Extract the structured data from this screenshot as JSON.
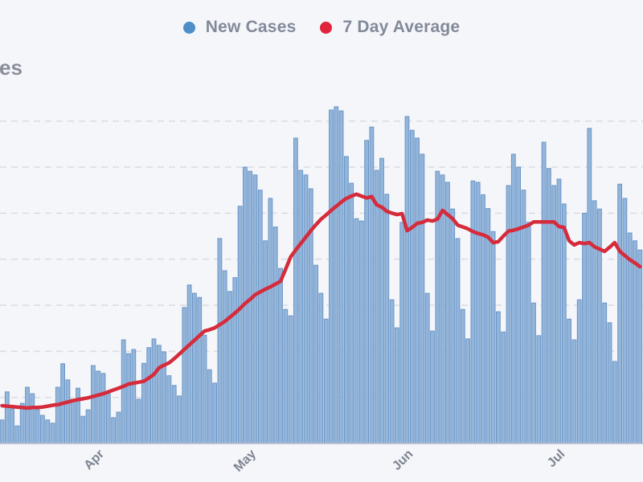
{
  "page": {
    "background": "#f5f6f9"
  },
  "y_axis_title_fragment": "es",
  "legend": {
    "items": [
      {
        "label": "New Cases",
        "color": "#4e8fc7",
        "series": "bars"
      },
      {
        "label": "7 Day Average",
        "color": "#e0243c",
        "series": "line"
      }
    ],
    "text_color": "#828a99",
    "position": "top-center"
  },
  "chart_data": {
    "type": "bar",
    "title": "",
    "xlabel": "",
    "ylabel": "",
    "x_tick_labels": [
      {
        "label": "Apr",
        "day_index": 19
      },
      {
        "label": "May",
        "day_index": 49
      },
      {
        "label": "Jun",
        "day_index": 80
      },
      {
        "label": "Jul",
        "day_index": 110
      }
    ],
    "y_axis": {
      "tick_labels_visible": false,
      "ylim": [
        0,
        800
      ],
      "gridline_values": [
        100,
        200,
        300,
        400,
        500,
        600,
        700
      ],
      "gridline_style": "dashed"
    },
    "dates": [
      "03-13",
      "03-14",
      "03-15",
      "03-16",
      "03-17",
      "03-18",
      "03-19",
      "03-20",
      "03-21",
      "03-22",
      "03-23",
      "03-24",
      "03-25",
      "03-26",
      "03-27",
      "03-28",
      "03-29",
      "03-30",
      "03-31",
      "04-01",
      "04-02",
      "04-03",
      "04-04",
      "04-05",
      "04-06",
      "04-07",
      "04-08",
      "04-09",
      "04-10",
      "04-11",
      "04-12",
      "04-13",
      "04-14",
      "04-15",
      "04-16",
      "04-17",
      "04-18",
      "04-19",
      "04-20",
      "04-21",
      "04-22",
      "04-23",
      "04-24",
      "04-25",
      "04-26",
      "04-27",
      "04-28",
      "04-29",
      "04-30",
      "05-01",
      "05-02",
      "05-03",
      "05-04",
      "05-05",
      "05-06",
      "05-07",
      "05-08",
      "05-09",
      "05-10",
      "05-11",
      "05-12",
      "05-13",
      "05-14",
      "05-15",
      "05-16",
      "05-17",
      "05-18",
      "05-19",
      "05-20",
      "05-21",
      "05-22",
      "05-23",
      "05-24",
      "05-25",
      "05-26",
      "05-27",
      "05-28",
      "05-29",
      "05-30",
      "05-31",
      "06-01",
      "06-02",
      "06-03",
      "06-04",
      "06-05",
      "06-06",
      "06-07",
      "06-08",
      "06-09",
      "06-10",
      "06-11",
      "06-12",
      "06-13",
      "06-14",
      "06-15",
      "06-16",
      "06-17",
      "06-18",
      "06-19",
      "06-20",
      "06-21",
      "06-22",
      "06-23",
      "06-24",
      "06-25",
      "06-26",
      "06-27",
      "06-28",
      "06-29",
      "06-30",
      "07-01",
      "07-02",
      "07-03",
      "07-04",
      "07-05",
      "07-06",
      "07-07",
      "07-08",
      "07-09",
      "07-10",
      "07-11",
      "07-12",
      "07-13",
      "07-14",
      "07-15",
      "07-16",
      "07-17"
    ],
    "series": [
      {
        "name": "New Cases",
        "type": "bar",
        "fill_color": "#93b5da",
        "border_color": "#6b96c8",
        "values": [
          51,
          112,
          75,
          38,
          87,
          122,
          108,
          73,
          61,
          51,
          44,
          122,
          173,
          138,
          96,
          120,
          59,
          73,
          169,
          157,
          152,
          108,
          56,
          68,
          225,
          195,
          204,
          96,
          174,
          208,
          227,
          213,
          199,
          147,
          126,
          103,
          295,
          344,
          326,
          317,
          235,
          160,
          131,
          445,
          375,
          330,
          360,
          515,
          600,
          591,
          583,
          550,
          440,
          532,
          470,
          380,
          291,
          277,
          663,
          593,
          583,
          553,
          387,
          326,
          270,
          724,
          731,
          722,
          623,
          565,
          488,
          483,
          658,
          687,
          593,
          619,
          541,
          312,
          251,
          480,
          710,
          680,
          663,
          628,
          326,
          244,
          591,
          583,
          567,
          509,
          445,
          291,
          227,
          570,
          567,
          540,
          510,
          460,
          286,
          242,
          560,
          628,
          600,
          550,
          480,
          305,
          234,
          654,
          597,
          560,
          574,
          520,
          270,
          225,
          312,
          500,
          684,
          527,
          509,
          305,
          262,
          178,
          563,
          532,
          457,
          440,
          420
        ]
      },
      {
        "name": "7 Day Average",
        "type": "line",
        "color": "#d52b3b",
        "values": [
          82,
          81,
          80,
          79,
          78,
          77,
          78,
          78,
          79,
          81,
          83,
          84,
          87,
          90,
          93,
          95,
          97,
          99,
          102,
          105,
          108,
          112,
          116,
          120,
          124,
          129,
          131,
          133,
          135,
          142,
          150,
          164,
          170,
          175,
          184,
          194,
          204,
          214,
          224,
          234,
          244,
          247,
          251,
          258,
          265,
          274,
          283,
          293,
          304,
          313,
          323,
          329,
          335,
          340,
          346,
          352,
          378,
          405,
          420,
          434,
          448,
          462,
          475,
          487,
          496,
          506,
          515,
          524,
          532,
          537,
          541,
          537,
          533,
          536,
          518,
          513,
          504,
          500,
          497,
          499,
          462,
          469,
          478,
          480,
          485,
          483,
          487,
          506,
          497,
          488,
          474,
          470,
          466,
          460,
          456,
          453,
          448,
          436,
          438,
          450,
          461,
          463,
          466,
          470,
          474,
          481,
          481,
          481,
          481,
          481,
          471,
          469,
          440,
          431,
          436,
          434,
          436,
          427,
          422,
          417,
          426,
          436,
          417,
          408,
          399,
          392,
          384
        ]
      }
    ],
    "colors": {
      "background": "#f5f6f9",
      "gridline": "#dadbe4",
      "axis_line": "#b9bed2",
      "tick_label": "#7d8491"
    }
  }
}
